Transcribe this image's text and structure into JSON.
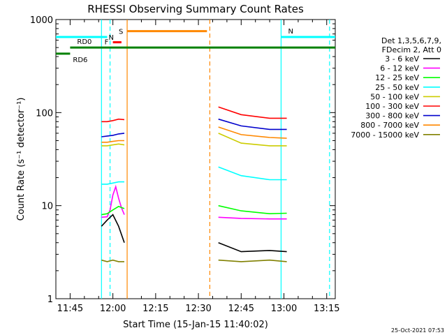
{
  "chart_data": {
    "type": "line",
    "title": "RHESSI Observing Summary Count Rates",
    "xlabel": "Start Time (15-Jan-15 11:40:02)",
    "ylabel": "Count Rate (s⁻¹ detector⁻¹)",
    "yscale": "log",
    "ylim": [
      1,
      1000
    ],
    "xlim": [
      "11:40",
      "13:18"
    ],
    "x_ticks": [
      "11:45",
      "12:00",
      "12:15",
      "12:30",
      "12:45",
      "13:00",
      "13:15"
    ],
    "y_ticks": [
      "1",
      "10",
      "100",
      "1000"
    ],
    "footer": "25-Oct-2021 07:53",
    "legend": {
      "header": [
        "Det 1,3,5,6,7,9,",
        "FDecim 2, Att 0"
      ],
      "position": "right"
    },
    "series": [
      {
        "name": "3 - 6 keV",
        "color": "#000000",
        "segments": [
          {
            "x": [
              "11:56",
              "11:58",
              "12:00",
              "12:02",
              "12:04"
            ],
            "y": [
              6,
              7,
              8,
              6,
              4
            ]
          },
          {
            "x": [
              "12:37",
              "12:45",
              "12:55",
              "13:01"
            ],
            "y": [
              4,
              3.2,
              3.3,
              3.2
            ]
          }
        ]
      },
      {
        "name": "6 - 12 keV",
        "color": "#ff00ff",
        "segments": [
          {
            "x": [
              "11:56",
              "11:58",
              "11:59",
              "12:00",
              "12:01",
              "12:02",
              "12:03",
              "12:04"
            ],
            "y": [
              7.5,
              7.6,
              9,
              13,
              16,
              12,
              9.5,
              8
            ]
          },
          {
            "x": [
              "12:37",
              "12:45",
              "12:55",
              "13:01"
            ],
            "y": [
              7.5,
              7.3,
              7.2,
              7.2
            ]
          }
        ]
      },
      {
        "name": "12 - 25 keV",
        "color": "#00ff00",
        "segments": [
          {
            "x": [
              "11:56",
              "11:58",
              "12:00",
              "12:02",
              "12:04"
            ],
            "y": [
              8,
              8.2,
              9,
              9.8,
              9.3
            ]
          },
          {
            "x": [
              "12:37",
              "12:45",
              "12:55",
              "13:01"
            ],
            "y": [
              10,
              8.8,
              8.2,
              8.3
            ]
          }
        ]
      },
      {
        "name": "25 - 50 keV",
        "color": "#00ffff",
        "segments": [
          {
            "x": [
              "11:56",
              "11:58",
              "12:00",
              "12:02",
              "12:04"
            ],
            "y": [
              17,
              17,
              17.5,
              18,
              18
            ]
          },
          {
            "x": [
              "12:37",
              "12:45",
              "12:55",
              "13:01"
            ],
            "y": [
              26,
              21,
              19,
              19
            ]
          }
        ]
      },
      {
        "name": "50 - 100 keV",
        "color": "#cccc00",
        "segments": [
          {
            "x": [
              "11:56",
              "11:58",
              "12:00",
              "12:02",
              "12:04"
            ],
            "y": [
              44,
              44,
              45,
              46,
              45
            ]
          },
          {
            "x": [
              "12:37",
              "12:45",
              "12:55",
              "13:01"
            ],
            "y": [
              60,
              47,
              44,
              44
            ]
          }
        ]
      },
      {
        "name": "100 - 300 keV",
        "color": "#ff0000",
        "segments": [
          {
            "x": [
              "11:56",
              "11:58",
              "12:00",
              "12:02",
              "12:04"
            ],
            "y": [
              80,
              80,
              82,
              85,
              84
            ]
          },
          {
            "x": [
              "12:37",
              "12:45",
              "12:55",
              "13:01"
            ],
            "y": [
              115,
              95,
              87,
              87
            ]
          }
        ]
      },
      {
        "name": "300 - 800 keV",
        "color": "#0000cc",
        "segments": [
          {
            "x": [
              "11:56",
              "11:58",
              "12:00",
              "12:02",
              "12:04"
            ],
            "y": [
              55,
              56,
              57,
              59,
              60
            ]
          },
          {
            "x": [
              "12:37",
              "12:45",
              "12:55",
              "13:01"
            ],
            "y": [
              85,
              72,
              66,
              66
            ]
          }
        ]
      },
      {
        "name": "800 - 7000 keV",
        "color": "#ff8800",
        "segments": [
          {
            "x": [
              "11:56",
              "11:58",
              "12:00",
              "12:02",
              "12:04"
            ],
            "y": [
              48,
              48,
              49,
              50,
              50
            ]
          },
          {
            "x": [
              "12:37",
              "12:45",
              "12:55",
              "13:01"
            ],
            "y": [
              70,
              58,
              54,
              53
            ]
          }
        ]
      },
      {
        "name": "7000 - 15000 keV",
        "color": "#808000",
        "segments": [
          {
            "x": [
              "11:56",
              "11:58",
              "12:00",
              "12:02",
              "12:04"
            ],
            "y": [
              2.6,
              2.5,
              2.6,
              2.5,
              2.5
            ]
          },
          {
            "x": [
              "12:37",
              "12:45",
              "12:55",
              "13:01"
            ],
            "y": [
              2.6,
              2.5,
              2.6,
              2.5
            ]
          }
        ]
      }
    ],
    "flags": [
      {
        "label": "RD0",
        "color": "#008000",
        "y": 500,
        "x": [
          "11:45",
          "13:18"
        ]
      },
      {
        "label": "RD6",
        "color": "#008000",
        "y": 430,
        "x": [
          "11:40",
          "11:45"
        ]
      },
      {
        "label": "N",
        "color": "#00ffff",
        "y": 650,
        "x": [
          "11:40",
          "11:58"
        ]
      },
      {
        "label": "N",
        "color": "#00ffff",
        "y": 650,
        "x": [
          "12:59",
          "13:18"
        ]
      },
      {
        "label": "F",
        "color": "#ff0000",
        "y": 570,
        "x": [
          "12:00",
          "12:03"
        ]
      },
      {
        "label": "S",
        "color": "#ff8800",
        "y": 750,
        "x": [
          "12:05",
          "12:33"
        ]
      }
    ],
    "vlines": [
      {
        "x": "11:56",
        "color": "#00ffff",
        "style": "solid"
      },
      {
        "x": "11:59",
        "color": "#00ffff",
        "style": "dashed"
      },
      {
        "x": "12:05",
        "color": "#ff8800",
        "style": "solid"
      },
      {
        "x": "12:34",
        "color": "#ff8800",
        "style": "dashed"
      },
      {
        "x": "12:59",
        "color": "#00ffff",
        "style": "solid"
      },
      {
        "x": "13:16",
        "color": "#00ffff",
        "style": "dashed"
      }
    ]
  }
}
